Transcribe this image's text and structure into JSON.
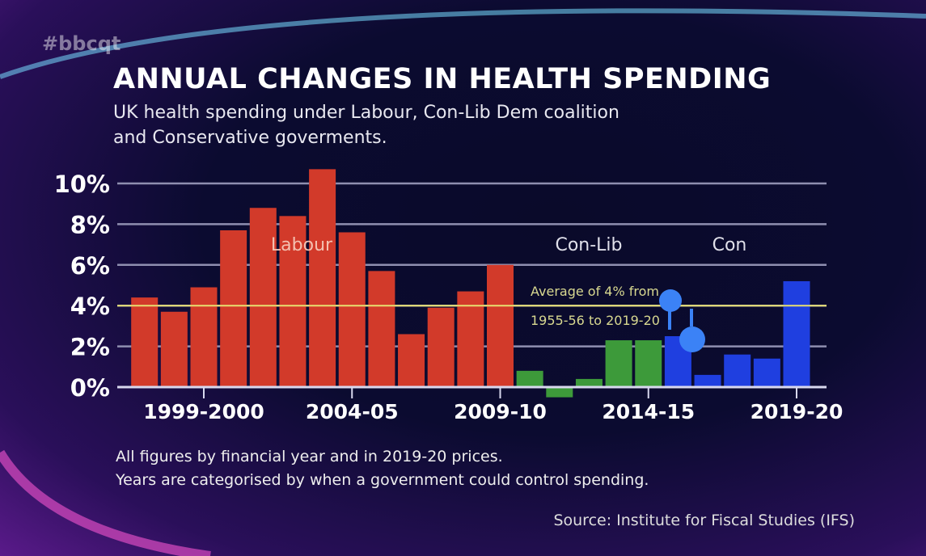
{
  "hashtag": "#bbcqt",
  "colors": {
    "labour": "#d23a2a",
    "conlib": "#3d9a3a",
    "con": "#1f3fe0",
    "average_line": "#e8e070",
    "grid": "#8f8fb0",
    "cursor": "#3b82f6"
  },
  "chart_data": {
    "type": "bar",
    "title": "ANNUAL CHANGES IN HEALTH SPENDING",
    "subtitle_lines": [
      "UK health spending under Labour, Con-Lib Dem coalition",
      "and Conservative goverments."
    ],
    "xlabel": "",
    "ylabel": "",
    "ylim": [
      -1,
      11
    ],
    "yticks": [
      0,
      2,
      4,
      6,
      8,
      10
    ],
    "ytick_labels": [
      "0%",
      "2%",
      "4%",
      "6%",
      "8%",
      "10%"
    ],
    "grid": true,
    "x_tick_labels": [
      {
        "index": 2,
        "label": "1999-2000"
      },
      {
        "index": 7,
        "label": "2004-05"
      },
      {
        "index": 12,
        "label": "2009-10"
      },
      {
        "index": 17,
        "label": "2014-15"
      },
      {
        "index": 22,
        "label": "2019-20"
      }
    ],
    "series": [
      {
        "name": "Labour",
        "color": "#d23a2a",
        "start": 0,
        "values": [
          4.4,
          3.7,
          4.9,
          7.7,
          8.8,
          8.4,
          10.7,
          7.6,
          5.7,
          2.6,
          3.9,
          4.7,
          6.0
        ]
      },
      {
        "name": "Con-Lib",
        "color": "#3d9a3a",
        "start": 13,
        "values": [
          0.8,
          -0.5,
          0.4,
          2.3,
          2.3
        ]
      },
      {
        "name": "Con",
        "color": "#1f3fe0",
        "start": 18,
        "values": [
          2.5,
          0.6,
          1.6,
          1.4,
          5.2
        ]
      }
    ],
    "reference_line": {
      "value": 4,
      "label_lines": [
        "Average of 4% from",
        "1955-56 to 2019-20"
      ]
    }
  },
  "footnotes": [
    "All figures by financial year and in 2019-20 prices.",
    "Years are categorised by when a government could control spending."
  ],
  "source": "Source: Institute for Fiscal Studies (IFS)"
}
